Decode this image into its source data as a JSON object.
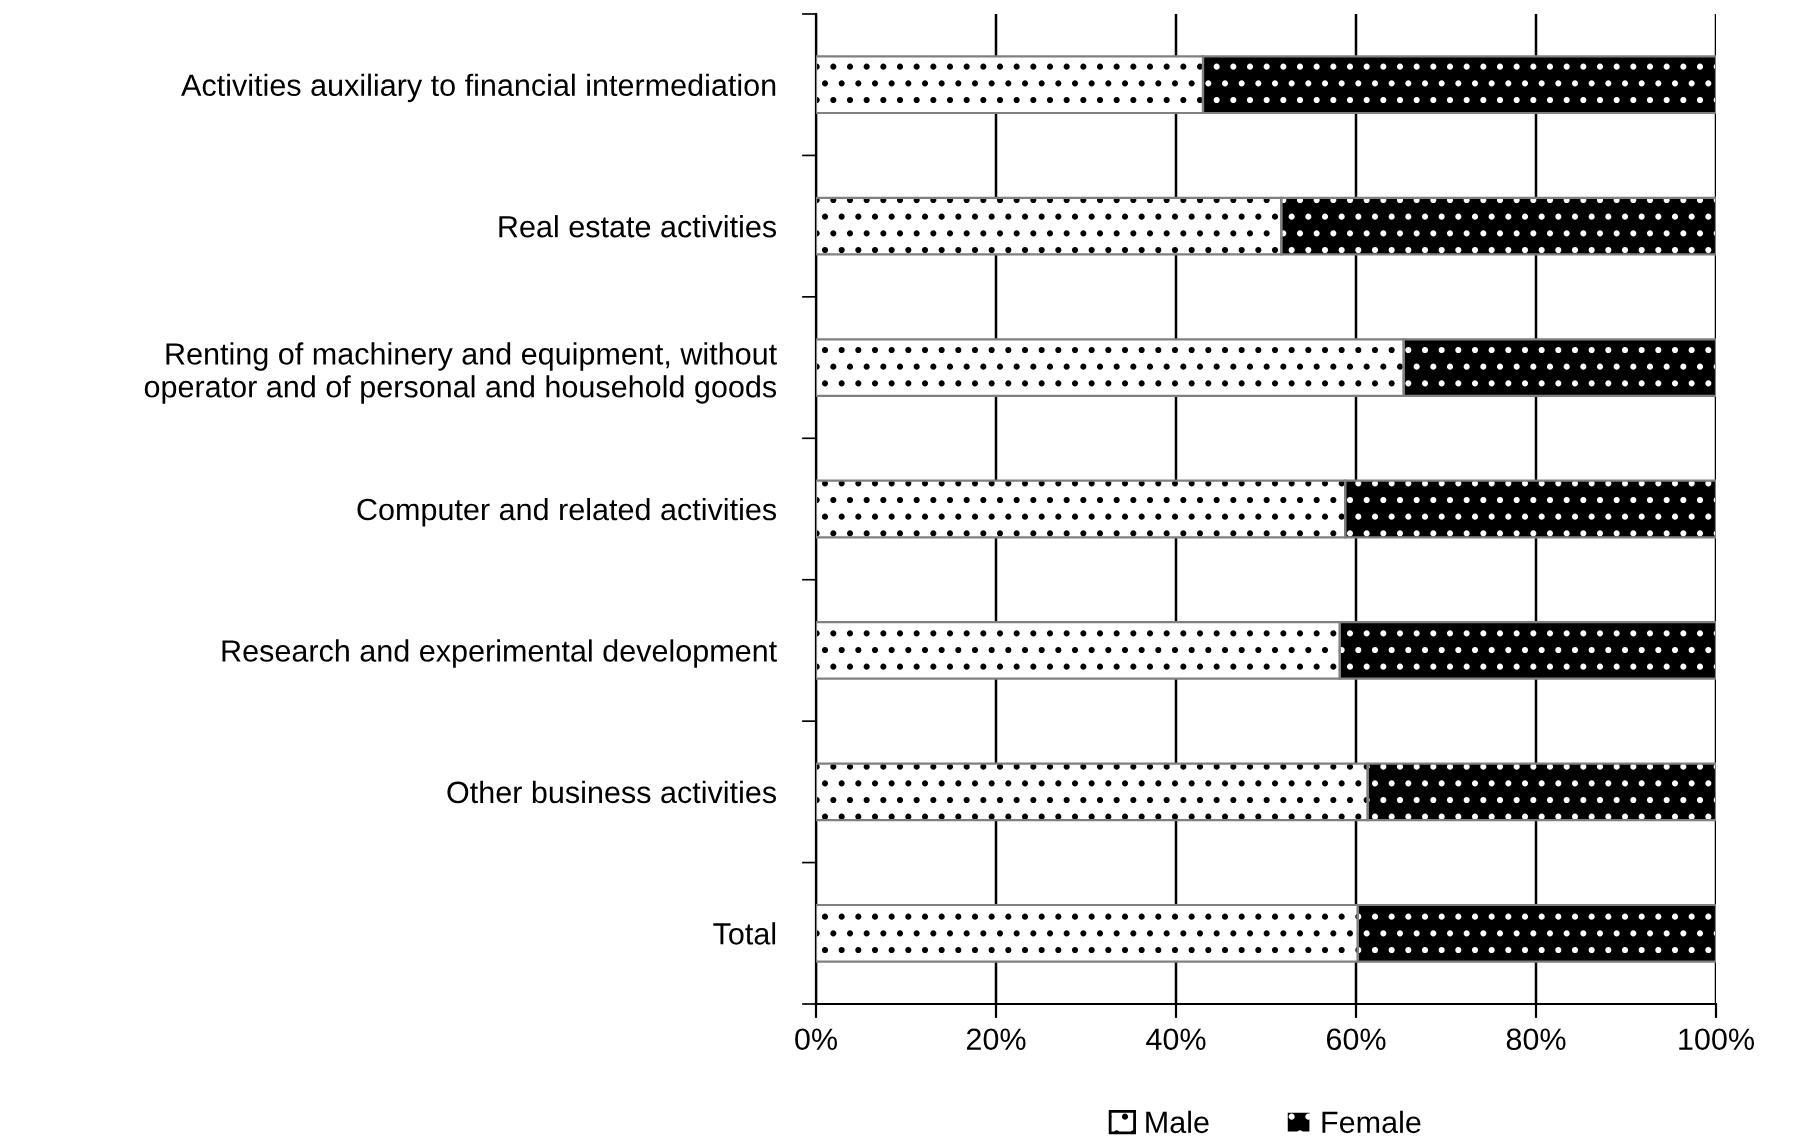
{
  "chart_data": {
    "type": "bar",
    "orientation": "horizontal",
    "stacked": true,
    "categories": [
      "Activities auxiliary to financial intermediation",
      "Real estate activities",
      "Renting of machinery and equipment, without\noperator and of personal and household goods",
      "Computer and related activities",
      "Research and experimental development",
      "Other business activities",
      "Total"
    ],
    "series": [
      {
        "name": "Male",
        "color": "#ffffff",
        "values": [
          43.0,
          51.7,
          65.3,
          58.8,
          58.2,
          61.3,
          60.2
        ]
      },
      {
        "name": "Female",
        "color": "#000000",
        "values": [
          57.0,
          48.3,
          34.7,
          41.2,
          41.8,
          38.7,
          39.8
        ]
      }
    ],
    "xlim": [
      0,
      100
    ],
    "xticks": [
      {
        "value": 0,
        "label": "0%"
      },
      {
        "value": 20,
        "label": "20%"
      },
      {
        "value": 40,
        "label": "40%"
      },
      {
        "value": 60,
        "label": "60%"
      },
      {
        "value": 80,
        "label": "80%"
      },
      {
        "value": 100,
        "label": "100%"
      }
    ],
    "grid": "x",
    "legend": "bottom"
  }
}
